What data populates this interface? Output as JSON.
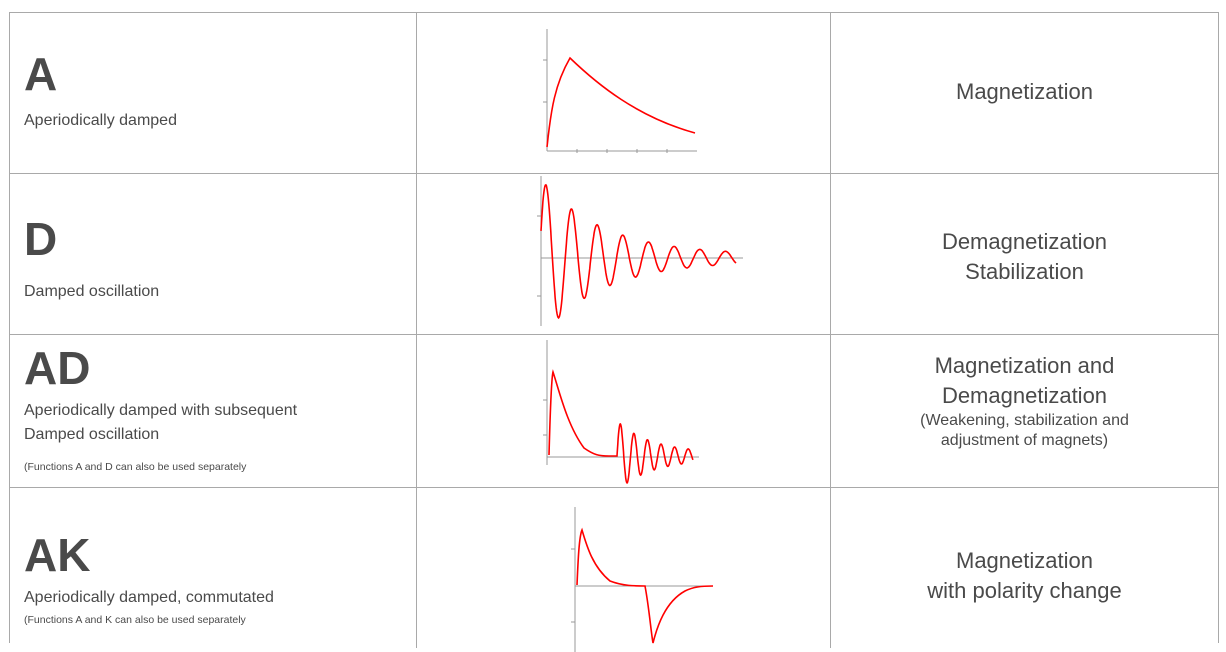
{
  "rows": [
    {
      "code": "A",
      "description": [
        "Aperiodically damped"
      ],
      "note": "",
      "function": [
        "Magnetization"
      ],
      "function_note": [],
      "curve_icon": "aperiodic-damped-curve"
    },
    {
      "code": "D",
      "description": [
        "Damped oscillation"
      ],
      "note": "",
      "function": [
        "Demagnetization",
        "Stabilization"
      ],
      "function_note": [],
      "curve_icon": "damped-oscillation-curve"
    },
    {
      "code": "AD",
      "description": [
        "Aperiodically damped with subsequent",
        "Damped oscillation"
      ],
      "note": "(Functions A and D can also be used separately",
      "function": [
        "Magnetization and",
        "Demagnetization"
      ],
      "function_note": [
        "(Weakening, stabilization and",
        "adjustment of magnets)"
      ],
      "curve_icon": "aperiodic-then-oscillation-curve"
    },
    {
      "code": "AK",
      "description": [
        "Aperiodically damped, commutated"
      ],
      "note": "(Functions A and K can also be used separately",
      "function": [
        "Magnetization",
        "with polarity change"
      ],
      "function_note": [],
      "curve_icon": "commutated-curve"
    }
  ],
  "colors": {
    "curve": "#ff0000",
    "axis": "#999999",
    "text": "#4a4a4a",
    "border": "#a9a9a9"
  }
}
